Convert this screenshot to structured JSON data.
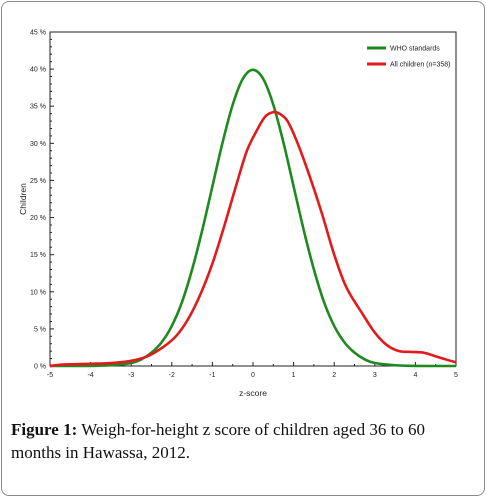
{
  "chart_data": {
    "type": "line",
    "title": "",
    "xlabel": "z-score",
    "ylabel": "Children",
    "xlim": [
      -5,
      5
    ],
    "ylim": [
      0,
      45
    ],
    "x_ticks": [
      -5,
      -4,
      -3,
      -2,
      -1,
      0,
      1,
      2,
      3,
      4,
      5
    ],
    "y_ticks": [
      {
        "value": 0,
        "label": "0 %"
      },
      {
        "value": 5,
        "label": "5 %"
      },
      {
        "value": 10,
        "label": "10 %"
      },
      {
        "value": 15,
        "label": "15 %"
      },
      {
        "value": 20,
        "label": "20 %"
      },
      {
        "value": 25,
        "label": "25 %"
      },
      {
        "value": 30,
        "label": "30 %"
      },
      {
        "value": 35,
        "label": "35 %"
      },
      {
        "value": 40,
        "label": "40 %"
      },
      {
        "value": 45,
        "label": "45 %"
      }
    ],
    "legend_position": "top-right",
    "grid": false,
    "series": [
      {
        "name": "WHO standards",
        "color": "#1e8a1e",
        "points": [
          [
            -5,
            0
          ],
          [
            -4,
            0.01
          ],
          [
            -3.5,
            0.1
          ],
          [
            -3,
            0.4
          ],
          [
            -2.75,
            0.9
          ],
          [
            -2.5,
            1.8
          ],
          [
            -2.25,
            3.2
          ],
          [
            -2,
            5.4
          ],
          [
            -1.75,
            8.6
          ],
          [
            -1.5,
            13.0
          ],
          [
            -1.25,
            18.3
          ],
          [
            -1,
            24.2
          ],
          [
            -0.75,
            30.1
          ],
          [
            -0.5,
            35.2
          ],
          [
            -0.25,
            38.7
          ],
          [
            0,
            39.9
          ],
          [
            0.25,
            38.7
          ],
          [
            0.5,
            35.2
          ],
          [
            0.75,
            30.1
          ],
          [
            1,
            24.2
          ],
          [
            1.25,
            18.3
          ],
          [
            1.5,
            13.0
          ],
          [
            1.75,
            8.6
          ],
          [
            2,
            5.4
          ],
          [
            2.25,
            3.2
          ],
          [
            2.5,
            1.8
          ],
          [
            2.75,
            0.9
          ],
          [
            3,
            0.4
          ],
          [
            3.5,
            0.1
          ],
          [
            4,
            0.01
          ],
          [
            5,
            0
          ]
        ]
      },
      {
        "name": "All children (n=358)",
        "color": "#e31a1c",
        "points": [
          [
            -5,
            0
          ],
          [
            -4.7,
            0.2
          ],
          [
            -4,
            0.3
          ],
          [
            -3.5,
            0.4
          ],
          [
            -3,
            0.7
          ],
          [
            -2.6,
            1.3
          ],
          [
            -2.2,
            2.6
          ],
          [
            -1.9,
            4.0
          ],
          [
            -1.6,
            6.3
          ],
          [
            -1.3,
            9.6
          ],
          [
            -1.0,
            13.8
          ],
          [
            -0.7,
            19.0
          ],
          [
            -0.4,
            24.6
          ],
          [
            -0.15,
            29.0
          ],
          [
            0.1,
            31.8
          ],
          [
            0.3,
            33.6
          ],
          [
            0.5,
            34.2
          ],
          [
            0.65,
            34.0
          ],
          [
            0.85,
            33.0
          ],
          [
            1.1,
            30.0
          ],
          [
            1.4,
            25.5
          ],
          [
            1.7,
            20.5
          ],
          [
            2.0,
            15.0
          ],
          [
            2.3,
            10.6
          ],
          [
            2.7,
            7.0
          ],
          [
            3.0,
            4.5
          ],
          [
            3.3,
            2.8
          ],
          [
            3.6,
            2.0
          ],
          [
            3.9,
            1.9
          ],
          [
            4.2,
            1.8
          ],
          [
            4.5,
            1.3
          ],
          [
            4.8,
            0.8
          ],
          [
            5.0,
            0.5
          ]
        ]
      }
    ]
  },
  "caption": {
    "figure_label": "Figure 1:",
    "text": " Weigh-for-height z score of children aged 36 to 60 months in Hawassa, 2012."
  }
}
